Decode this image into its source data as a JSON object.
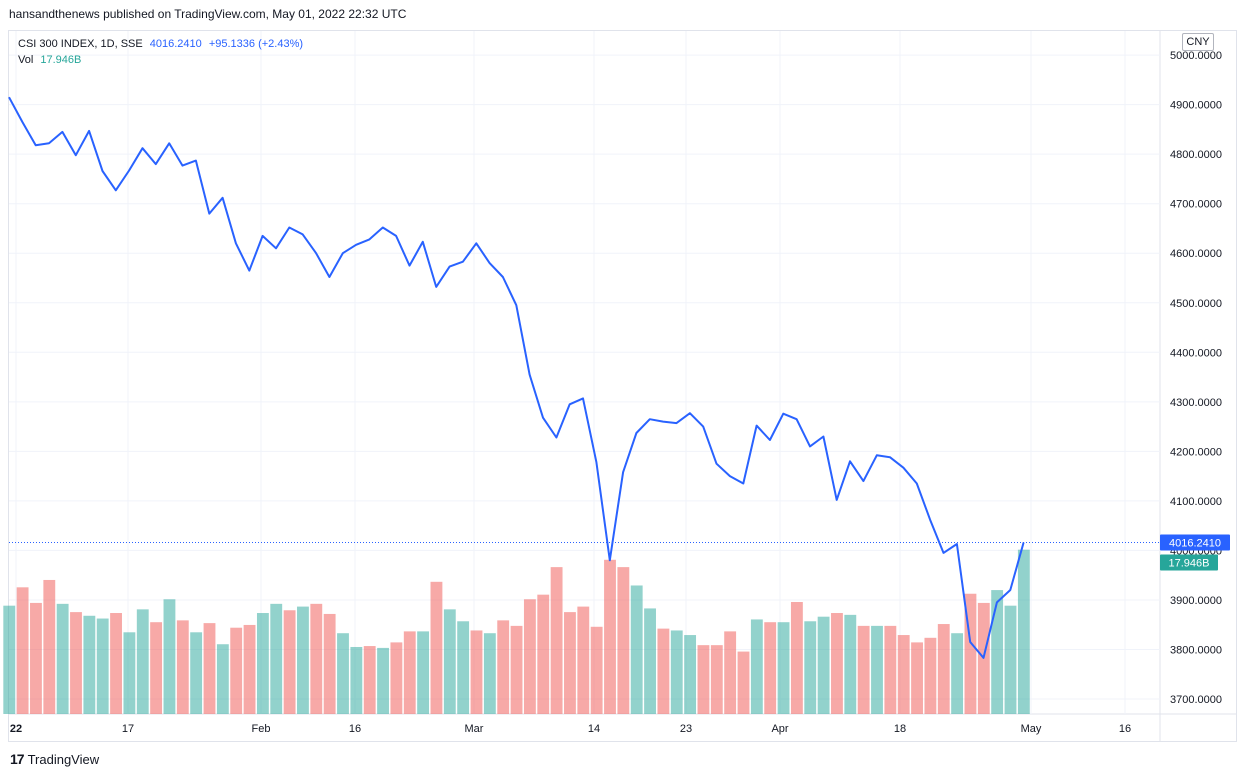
{
  "header": {
    "published_text": "hansandthenews published on TradingView.com, May 01, 2022 22:32 UTC"
  },
  "legend": {
    "symbol": "CSI 300 INDEX, 1D, SSE",
    "price": "4016.2410",
    "change": "+95.1336 (+2.43%)",
    "vol_label": "Vol",
    "vol_value": "17.946B"
  },
  "currency": "CNY",
  "footer": {
    "brand": "TradingView",
    "logo_glyph": "17"
  },
  "colors": {
    "line": "#2962ff",
    "vol_up": "#26a69a",
    "vol_down": "#ef5350",
    "grid": "#f0f3fa",
    "price_tag_bg": "#2962ff",
    "vol_tag_bg": "#26a69a"
  },
  "chart_data": {
    "type": "line",
    "title": "",
    "price_axis": {
      "ticks": [
        "3700.0000",
        "3800.0000",
        "3900.0000",
        "4000.0000",
        "4100.0000",
        "4200.0000",
        "4300.0000",
        "4400.0000",
        "4500.0000",
        "4600.0000",
        "4700.0000",
        "4800.0000",
        "4900.0000",
        "5000.0000"
      ],
      "range": [
        3670,
        5015
      ]
    },
    "x_ticks": [
      "22",
      "17",
      "Feb",
      "16",
      "Mar",
      "14",
      "23",
      "Apr",
      "18",
      "May",
      "16"
    ],
    "current_price_label": "4016.2410",
    "current_volume_label": "17.946B",
    "series": [
      {
        "type": "line",
        "values": [
          4915,
          4865,
          4818,
          4822,
          4845,
          4798,
          4847,
          4766,
          4727,
          4767,
          4812,
          4780,
          4822,
          4777,
          4787,
          4680,
          4712,
          4620,
          4565,
          4635,
          4610,
          4652,
          4638,
          4600,
          4552,
          4600,
          4617,
          4628,
          4652,
          4635,
          4575,
          4623,
          4532,
          4573,
          4583,
          4620,
          4580,
          4552,
          4495,
          4355,
          4268,
          4228,
          4295,
          4307,
          4178,
          3980,
          4158,
          4237,
          4265,
          4260,
          4257,
          4277,
          4250,
          4175,
          4150,
          4135,
          4252,
          4223,
          4276,
          4265,
          4210,
          4230,
          4102,
          4180,
          4140,
          4192,
          4188,
          4167,
          4135,
          4062,
          3995,
          4013,
          3815,
          3783,
          3895,
          3920,
          4016
        ]
      },
      {
        "type": "bar",
        "name": "Vol",
        "values": [
          11.8,
          13.8,
          12.1,
          14.6,
          12.0,
          11.1,
          10.7,
          10.4,
          11.0,
          8.9,
          11.4,
          10.0,
          12.5,
          10.2,
          8.9,
          9.9,
          7.6,
          9.4,
          9.7,
          11.0,
          12.0,
          11.3,
          11.7,
          12.0,
          10.9,
          8.8,
          7.3,
          7.4,
          7.2,
          7.8,
          9.0,
          9.0,
          14.4,
          11.4,
          10.1,
          9.1,
          8.8,
          10.2,
          9.6,
          12.5,
          13.0,
          16.0,
          11.1,
          11.7,
          9.5,
          16.8,
          16.0,
          14.0,
          11.5,
          9.3,
          9.1,
          8.6,
          7.5,
          7.5,
          9.0,
          6.8,
          10.3,
          10.0,
          10.0,
          12.2,
          10.1,
          10.6,
          11.0,
          10.8,
          9.6,
          9.6,
          9.6,
          8.6,
          7.8,
          8.3,
          9.8,
          8.8,
          13.1,
          12.1,
          13.5,
          11.8,
          17.9
        ],
        "direction": [
          "up",
          "down",
          "down",
          "down",
          "up",
          "down",
          "up",
          "up",
          "down",
          "up",
          "up",
          "down",
          "up",
          "down",
          "up",
          "down",
          "up",
          "down",
          "down",
          "up",
          "up",
          "down",
          "up",
          "down",
          "down",
          "up",
          "up",
          "down",
          "up",
          "down",
          "down",
          "up",
          "down",
          "up",
          "up",
          "down",
          "up",
          "down",
          "down",
          "down",
          "down",
          "down",
          "down",
          "down",
          "down",
          "down",
          "down",
          "up",
          "up",
          "down",
          "up",
          "up",
          "down",
          "down",
          "down",
          "down",
          "up",
          "down",
          "up",
          "down",
          "up",
          "up",
          "down",
          "up",
          "down",
          "up",
          "down",
          "down",
          "down",
          "down",
          "down",
          "up",
          "down",
          "down",
          "up",
          "up",
          "up"
        ]
      }
    ]
  }
}
